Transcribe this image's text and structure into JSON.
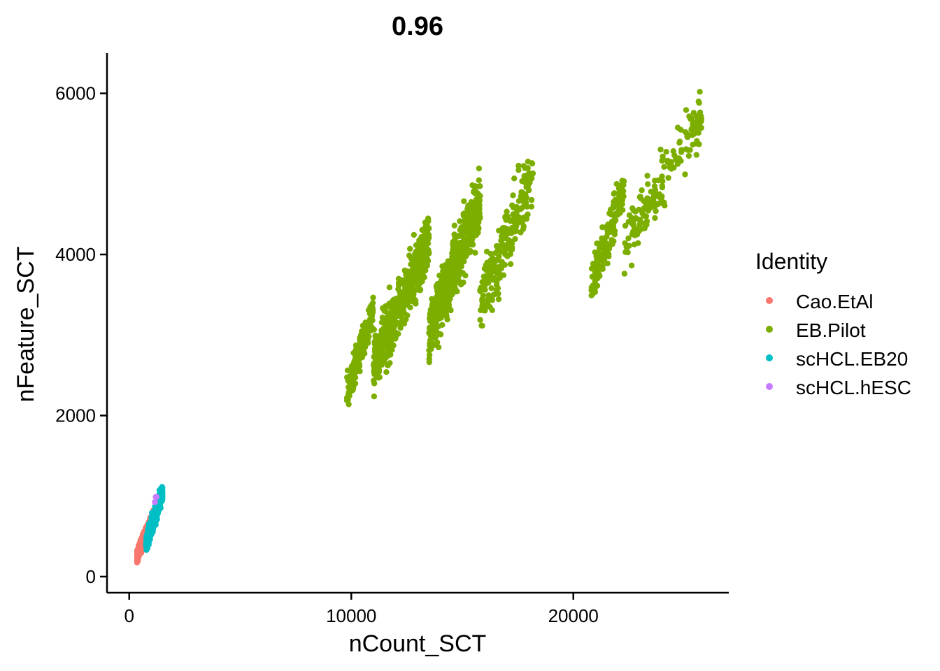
{
  "chart_data": {
    "type": "scatter",
    "title": "0.96",
    "xlabel": "nCount_SCT",
    "ylabel": "nFeature_SCT",
    "xlim": [
      -1000,
      27000
    ],
    "ylim": [
      -200,
      6500
    ],
    "x_ticks": [
      0,
      10000,
      20000
    ],
    "y_ticks": [
      0,
      2000,
      4000,
      6000
    ],
    "grid": false,
    "legend": {
      "title": "Identity",
      "position": "right",
      "entries": [
        {
          "name": "Cao.EtAl",
          "color": "#F8766D"
        },
        {
          "name": "EB.Pilot",
          "color": "#7CAE00"
        },
        {
          "name": "scHCL.EB20",
          "color": "#00BFC4"
        },
        {
          "name": "scHCL.hESC",
          "color": "#C77CFF"
        }
      ]
    },
    "series": [
      {
        "name": "Cao.EtAl",
        "color": "#F8766D",
        "clusters": [
          {
            "x_min": 350,
            "x_max": 1100,
            "y_min": 100,
            "y_max": 880,
            "slope": 1.05,
            "spread": 150,
            "n": 700
          }
        ]
      },
      {
        "name": "EB.Pilot",
        "color": "#7CAE00",
        "clusters": [
          {
            "x_min": 9800,
            "x_max": 11000,
            "y_min": 1950,
            "y_max": 3600,
            "slope": 1.1,
            "spread": 450,
            "n": 160
          },
          {
            "x_min": 11000,
            "x_max": 13500,
            "y_min": 2150,
            "y_max": 4600,
            "slope": 0.75,
            "spread": 800,
            "n": 520
          },
          {
            "x_min": 13500,
            "x_max": 15800,
            "y_min": 2500,
            "y_max": 5100,
            "slope": 0.7,
            "spread": 850,
            "n": 560
          },
          {
            "x_min": 15800,
            "x_max": 18200,
            "y_min": 2850,
            "y_max": 5450,
            "slope": 0.7,
            "spread": 900,
            "n": 220
          },
          {
            "x_min": 20800,
            "x_max": 22300,
            "y_min": 3200,
            "y_max": 5200,
            "slope": 0.8,
            "spread": 650,
            "n": 170
          },
          {
            "x_min": 22300,
            "x_max": 25800,
            "y_min": 3600,
            "y_max": 6180,
            "slope": 0.8,
            "spread": 800,
            "n": 180
          }
        ]
      },
      {
        "name": "scHCL.EB20",
        "color": "#00BFC4",
        "clusters": [
          {
            "x_min": 750,
            "x_max": 1500,
            "y_min": 200,
            "y_max": 1220,
            "slope": 1.2,
            "spread": 220,
            "n": 420
          }
        ]
      },
      {
        "name": "scHCL.hESC",
        "color": "#C77CFF",
        "clusters": [
          {
            "x_min": 1150,
            "x_max": 1300,
            "y_min": 900,
            "y_max": 1120,
            "slope": 1.0,
            "spread": 100,
            "n": 4
          }
        ]
      }
    ]
  }
}
